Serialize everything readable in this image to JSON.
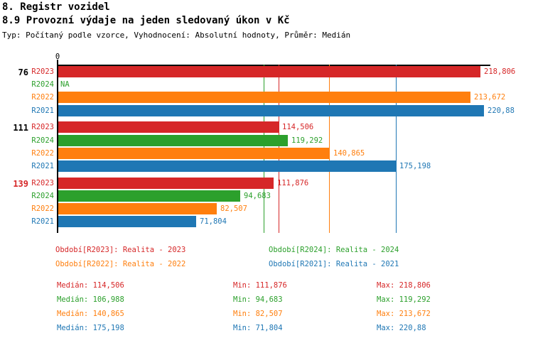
{
  "header": {
    "line1": "8. Registr vozidel",
    "line2": "8.9 Provozní výdaje na jeden sledovaný úkon v Kč",
    "line3": "Typ: Počítaný podle vzorce, Vyhodnocení: Absolutní hodnoty, Průměr: Medián"
  },
  "colors": {
    "R2023": "#d62728",
    "R2024": "#2ca02c",
    "R2022": "#ff7f0e",
    "R2021": "#1f77b4",
    "axis": "#000000",
    "text": "#000000",
    "group_highlight": "#d62728"
  },
  "chart_data": {
    "type": "bar",
    "orientation": "horizontal",
    "unit": "Kč",
    "x_tick_labels": [
      "0"
    ],
    "axis_min": 0,
    "axis_max": 224,
    "grid": "median-lines-only",
    "series_order": [
      "R2023",
      "R2024",
      "R2022",
      "R2021"
    ],
    "groups": [
      {
        "label": "76",
        "label_color": "#000000",
        "bars": [
          {
            "series": "R2023",
            "value": 218.806,
            "display": "218,806"
          },
          {
            "series": "R2024",
            "value": null,
            "display": "NA"
          },
          {
            "series": "R2022",
            "value": 213.672,
            "display": "213,672"
          },
          {
            "series": "R2021",
            "value": 220.88,
            "display": "220,88"
          }
        ]
      },
      {
        "label": "111",
        "label_color": "#000000",
        "bars": [
          {
            "series": "R2023",
            "value": 114.506,
            "display": "114,506"
          },
          {
            "series": "R2024",
            "value": 119.292,
            "display": "119,292"
          },
          {
            "series": "R2022",
            "value": 140.865,
            "display": "140,865"
          },
          {
            "series": "R2021",
            "value": 175.198,
            "display": "175,198"
          }
        ]
      },
      {
        "label": "139",
        "label_color": "#d62728",
        "bars": [
          {
            "series": "R2023",
            "value": 111.876,
            "display": "111,876"
          },
          {
            "series": "R2024",
            "value": 94.683,
            "display": "94,683"
          },
          {
            "series": "R2022",
            "value": 82.507,
            "display": "82,507"
          },
          {
            "series": "R2021",
            "value": 71.804,
            "display": "71,804"
          }
        ]
      }
    ],
    "median_lines": [
      {
        "series": "R2024",
        "value": 106.988
      },
      {
        "series": "R2023",
        "value": 114.506
      },
      {
        "series": "R2022",
        "value": 140.865
      },
      {
        "series": "R2021",
        "value": 175.198
      }
    ]
  },
  "legend": [
    {
      "series": "R2023",
      "label": "Období[R2023]: Realita - 2023"
    },
    {
      "series": "R2024",
      "label": "Období[R2024]: Realita - 2024"
    },
    {
      "series": "R2022",
      "label": "Období[R2022]: Realita - 2022"
    },
    {
      "series": "R2021",
      "label": "Období[R2021]: Realita - 2021"
    }
  ],
  "stats": [
    {
      "series": "R2023",
      "median": "Medián: 114,506",
      "min": "Min: 111,876",
      "max": "Max: 218,806"
    },
    {
      "series": "R2024",
      "median": "Medián: 106,988",
      "min": "Min: 94,683",
      "max": "Max: 119,292"
    },
    {
      "series": "R2022",
      "median": "Medián: 140,865",
      "min": "Min: 82,507",
      "max": "Max: 213,672"
    },
    {
      "series": "R2021",
      "median": "Medián: 175,198",
      "min": "Min: 71,804",
      "max": "Max: 220,88"
    }
  ]
}
